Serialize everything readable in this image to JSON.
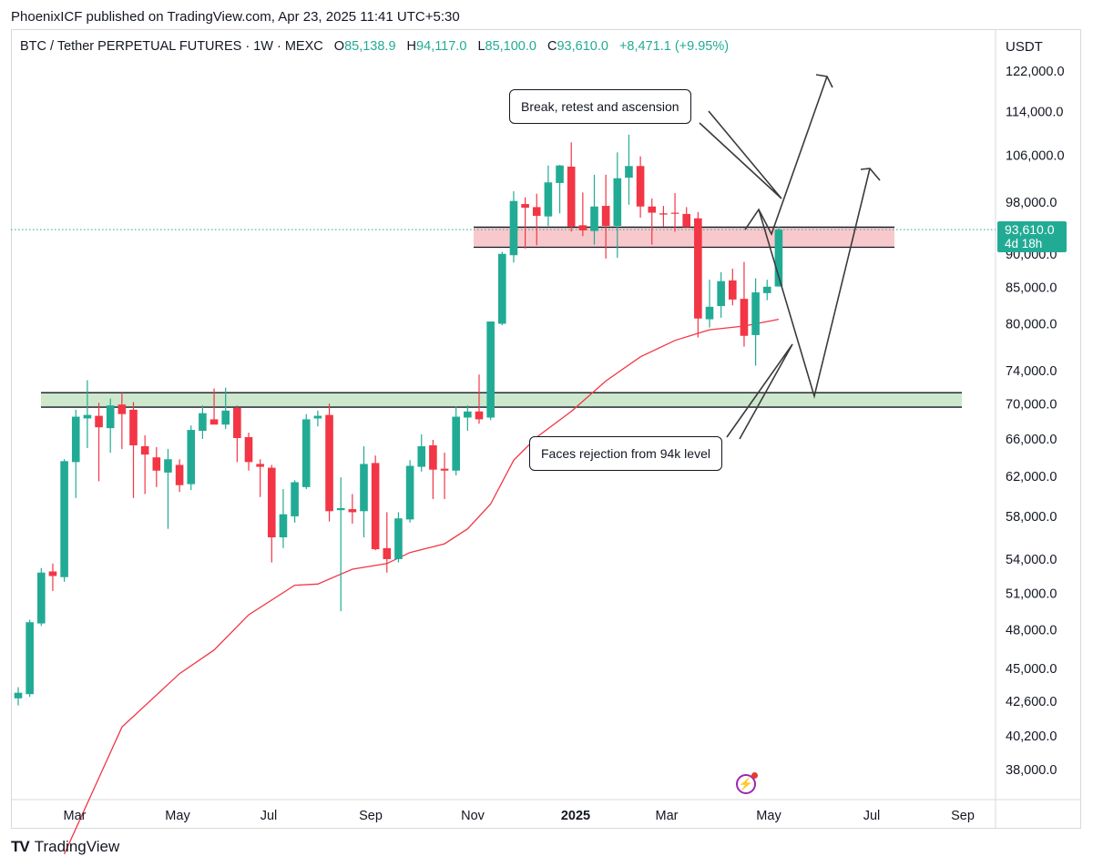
{
  "header": {
    "text": "PhoenixICF published on TradingView.com, Apr 23, 2025 11:41 UTC+5:30"
  },
  "title": {
    "symbol": "BTC / Tether PERPETUAL FUTURES · 1W · MEXC",
    "open_label": "O",
    "open": "85,138.9",
    "high_label": "H",
    "high": "94,117.0",
    "low_label": "L",
    "low": "85,100.0",
    "close_label": "C",
    "close": "93,610.0",
    "change": "+8,471.1 (+9.95%)"
  },
  "currency": "USDT",
  "price_tag": {
    "price": "93,610.0",
    "countdown": "4d 18h"
  },
  "annotations": {
    "top_callout": "Break, retest and ascension",
    "bottom_callout": "Faces rejection from 94k level"
  },
  "footer": {
    "brand": "TradingView",
    "logo": "TV"
  },
  "colors": {
    "up": "#22ab94",
    "down": "#f23645",
    "ma": "#f23645",
    "resistance_zone": "#f8c9cc",
    "support_zone": "#cde8cd",
    "last_price_line": "#22ab94"
  },
  "icons": {
    "flash": "lightning-icon"
  },
  "chart_data": {
    "type": "candlestick",
    "x_tick_labels": [
      "Mar",
      "May",
      "Jul",
      "Sep",
      "Nov",
      "2025",
      "Mar",
      "May",
      "Jul",
      "Sep"
    ],
    "y_tick_labels": [
      "122,000.0",
      "114,000.0",
      "106,000.0",
      "98,000.0",
      "90,000.0",
      "85,000.0",
      "80,000.0",
      "74,000.0",
      "70,000.0",
      "66,000.0",
      "62,000.0",
      "58,000.0",
      "54,000.0",
      "51,000.0",
      "48,000.0",
      "45,000.0",
      "42,600.0",
      "40,200.0",
      "38,000.0"
    ],
    "y_tick_values": [
      122000,
      114000,
      106000,
      98000,
      90000,
      85000,
      80000,
      74000,
      70000,
      66000,
      62000,
      58000,
      54000,
      51000,
      48000,
      45000,
      42600,
      40200,
      38000
    ],
    "y_scale": "log",
    "candles": [
      {
        "o": 42800,
        "h": 43600,
        "l": 42300,
        "c": 43200
      },
      {
        "o": 43100,
        "h": 48800,
        "l": 42900,
        "c": 48600
      },
      {
        "o": 48500,
        "h": 53200,
        "l": 48300,
        "c": 52800
      },
      {
        "o": 52900,
        "h": 53600,
        "l": 51200,
        "c": 52500
      },
      {
        "o": 52400,
        "h": 63800,
        "l": 52000,
        "c": 63600
      },
      {
        "o": 63500,
        "h": 69300,
        "l": 59800,
        "c": 68500
      },
      {
        "o": 68300,
        "h": 72800,
        "l": 65000,
        "c": 68700
      },
      {
        "o": 68600,
        "h": 70100,
        "l": 61500,
        "c": 67300
      },
      {
        "o": 67200,
        "h": 70600,
        "l": 64500,
        "c": 69800
      },
      {
        "o": 69900,
        "h": 71300,
        "l": 64900,
        "c": 68800
      },
      {
        "o": 69300,
        "h": 70200,
        "l": 59800,
        "c": 65300
      },
      {
        "o": 65200,
        "h": 66400,
        "l": 60200,
        "c": 64300
      },
      {
        "o": 64000,
        "h": 65100,
        "l": 60900,
        "c": 62600
      },
      {
        "o": 62400,
        "h": 64900,
        "l": 56800,
        "c": 63800
      },
      {
        "o": 63200,
        "h": 63800,
        "l": 60400,
        "c": 61100
      },
      {
        "o": 61200,
        "h": 67500,
        "l": 60600,
        "c": 67000
      },
      {
        "o": 66900,
        "h": 69800,
        "l": 66000,
        "c": 68900
      },
      {
        "o": 68200,
        "h": 71800,
        "l": 67800,
        "c": 67600
      },
      {
        "o": 67600,
        "h": 71900,
        "l": 67100,
        "c": 69200
      },
      {
        "o": 69500,
        "h": 69800,
        "l": 63500,
        "c": 66100
      },
      {
        "o": 66200,
        "h": 66700,
        "l": 62600,
        "c": 63500
      },
      {
        "o": 63300,
        "h": 63800,
        "l": 59900,
        "c": 63000
      },
      {
        "o": 62900,
        "h": 63200,
        "l": 53700,
        "c": 56000
      },
      {
        "o": 56000,
        "h": 60700,
        "l": 55000,
        "c": 58200
      },
      {
        "o": 58000,
        "h": 61600,
        "l": 57400,
        "c": 61400
      },
      {
        "o": 60900,
        "h": 68800,
        "l": 60700,
        "c": 68200
      },
      {
        "o": 68300,
        "h": 69200,
        "l": 67400,
        "c": 68600
      },
      {
        "o": 68700,
        "h": 70000,
        "l": 57500,
        "c": 58500
      },
      {
        "o": 58600,
        "h": 61900,
        "l": 49500,
        "c": 58800
      },
      {
        "o": 58700,
        "h": 60200,
        "l": 57300,
        "c": 58400
      },
      {
        "o": 58500,
        "h": 65200,
        "l": 56000,
        "c": 63300
      },
      {
        "o": 63400,
        "h": 64200,
        "l": 54800,
        "c": 54900
      },
      {
        "o": 55000,
        "h": 58400,
        "l": 52800,
        "c": 54000
      },
      {
        "o": 54000,
        "h": 58400,
        "l": 53700,
        "c": 57800
      },
      {
        "o": 57700,
        "h": 63700,
        "l": 57400,
        "c": 63100
      },
      {
        "o": 63000,
        "h": 66500,
        "l": 62500,
        "c": 65200
      },
      {
        "o": 65300,
        "h": 65900,
        "l": 59700,
        "c": 62700
      },
      {
        "o": 62800,
        "h": 64500,
        "l": 59700,
        "c": 62600
      },
      {
        "o": 62600,
        "h": 69700,
        "l": 62100,
        "c": 68500
      },
      {
        "o": 68400,
        "h": 69800,
        "l": 66900,
        "c": 69100
      },
      {
        "o": 69100,
        "h": 73500,
        "l": 67700,
        "c": 68200
      },
      {
        "o": 68400,
        "h": 80200,
        "l": 68100,
        "c": 80300
      },
      {
        "o": 80000,
        "h": 90200,
        "l": 79800,
        "c": 89900
      },
      {
        "o": 89700,
        "h": 99800,
        "l": 88600,
        "c": 98200
      },
      {
        "o": 97700,
        "h": 98800,
        "l": 90700,
        "c": 97100
      },
      {
        "o": 97200,
        "h": 99400,
        "l": 91200,
        "c": 95800
      },
      {
        "o": 95700,
        "h": 104200,
        "l": 94200,
        "c": 101300
      },
      {
        "o": 101200,
        "h": 104300,
        "l": 96200,
        "c": 104200
      },
      {
        "o": 104000,
        "h": 108300,
        "l": 93300,
        "c": 94100
      },
      {
        "o": 94300,
        "h": 99600,
        "l": 92600,
        "c": 93500
      },
      {
        "o": 93400,
        "h": 102600,
        "l": 91300,
        "c": 97300
      },
      {
        "o": 97400,
        "h": 102600,
        "l": 89200,
        "c": 94200
      },
      {
        "o": 94200,
        "h": 106500,
        "l": 89300,
        "c": 102000
      },
      {
        "o": 102100,
        "h": 109700,
        "l": 97600,
        "c": 104100
      },
      {
        "o": 104100,
        "h": 105800,
        "l": 95500,
        "c": 97300
      },
      {
        "o": 97300,
        "h": 98600,
        "l": 91300,
        "c": 96300
      },
      {
        "o": 96200,
        "h": 97400,
        "l": 94100,
        "c": 96000
      },
      {
        "o": 96300,
        "h": 99500,
        "l": 93300,
        "c": 96200
      },
      {
        "o": 96100,
        "h": 97200,
        "l": 94300,
        "c": 94000
      },
      {
        "o": 95400,
        "h": 96400,
        "l": 78200,
        "c": 80700
      },
      {
        "o": 80600,
        "h": 86100,
        "l": 79500,
        "c": 82300
      },
      {
        "o": 82400,
        "h": 87200,
        "l": 80800,
        "c": 85900
      },
      {
        "o": 86000,
        "h": 87700,
        "l": 82500,
        "c": 83300
      },
      {
        "o": 83400,
        "h": 88700,
        "l": 77000,
        "c": 78400
      },
      {
        "o": 78500,
        "h": 86300,
        "l": 74600,
        "c": 84300
      },
      {
        "o": 84200,
        "h": 86100,
        "l": 83200,
        "c": 85100
      },
      {
        "o": 85138.9,
        "h": 94117,
        "l": 85100,
        "c": 93610
      }
    ],
    "moving_average": [
      {
        "i": 4,
        "v": 33000
      },
      {
        "i": 9,
        "v": 40800
      },
      {
        "i": 14,
        "v": 44600
      },
      {
        "i": 17,
        "v": 46400
      },
      {
        "i": 20,
        "v": 49200
      },
      {
        "i": 24,
        "v": 51700
      },
      {
        "i": 26,
        "v": 51800
      },
      {
        "i": 29,
        "v": 53100
      },
      {
        "i": 32,
        "v": 53600
      },
      {
        "i": 34,
        "v": 54600
      },
      {
        "i": 37,
        "v": 55400
      },
      {
        "i": 39,
        "v": 56800
      },
      {
        "i": 41,
        "v": 59200
      },
      {
        "i": 43,
        "v": 63700
      },
      {
        "i": 45,
        "v": 66200
      },
      {
        "i": 48,
        "v": 69100
      },
      {
        "i": 51,
        "v": 72700
      },
      {
        "i": 54,
        "v": 75700
      },
      {
        "i": 57,
        "v": 77800
      },
      {
        "i": 60,
        "v": 79200
      },
      {
        "i": 63,
        "v": 79700
      },
      {
        "i": 66,
        "v": 80600
      }
    ],
    "last_price": 93610
  }
}
